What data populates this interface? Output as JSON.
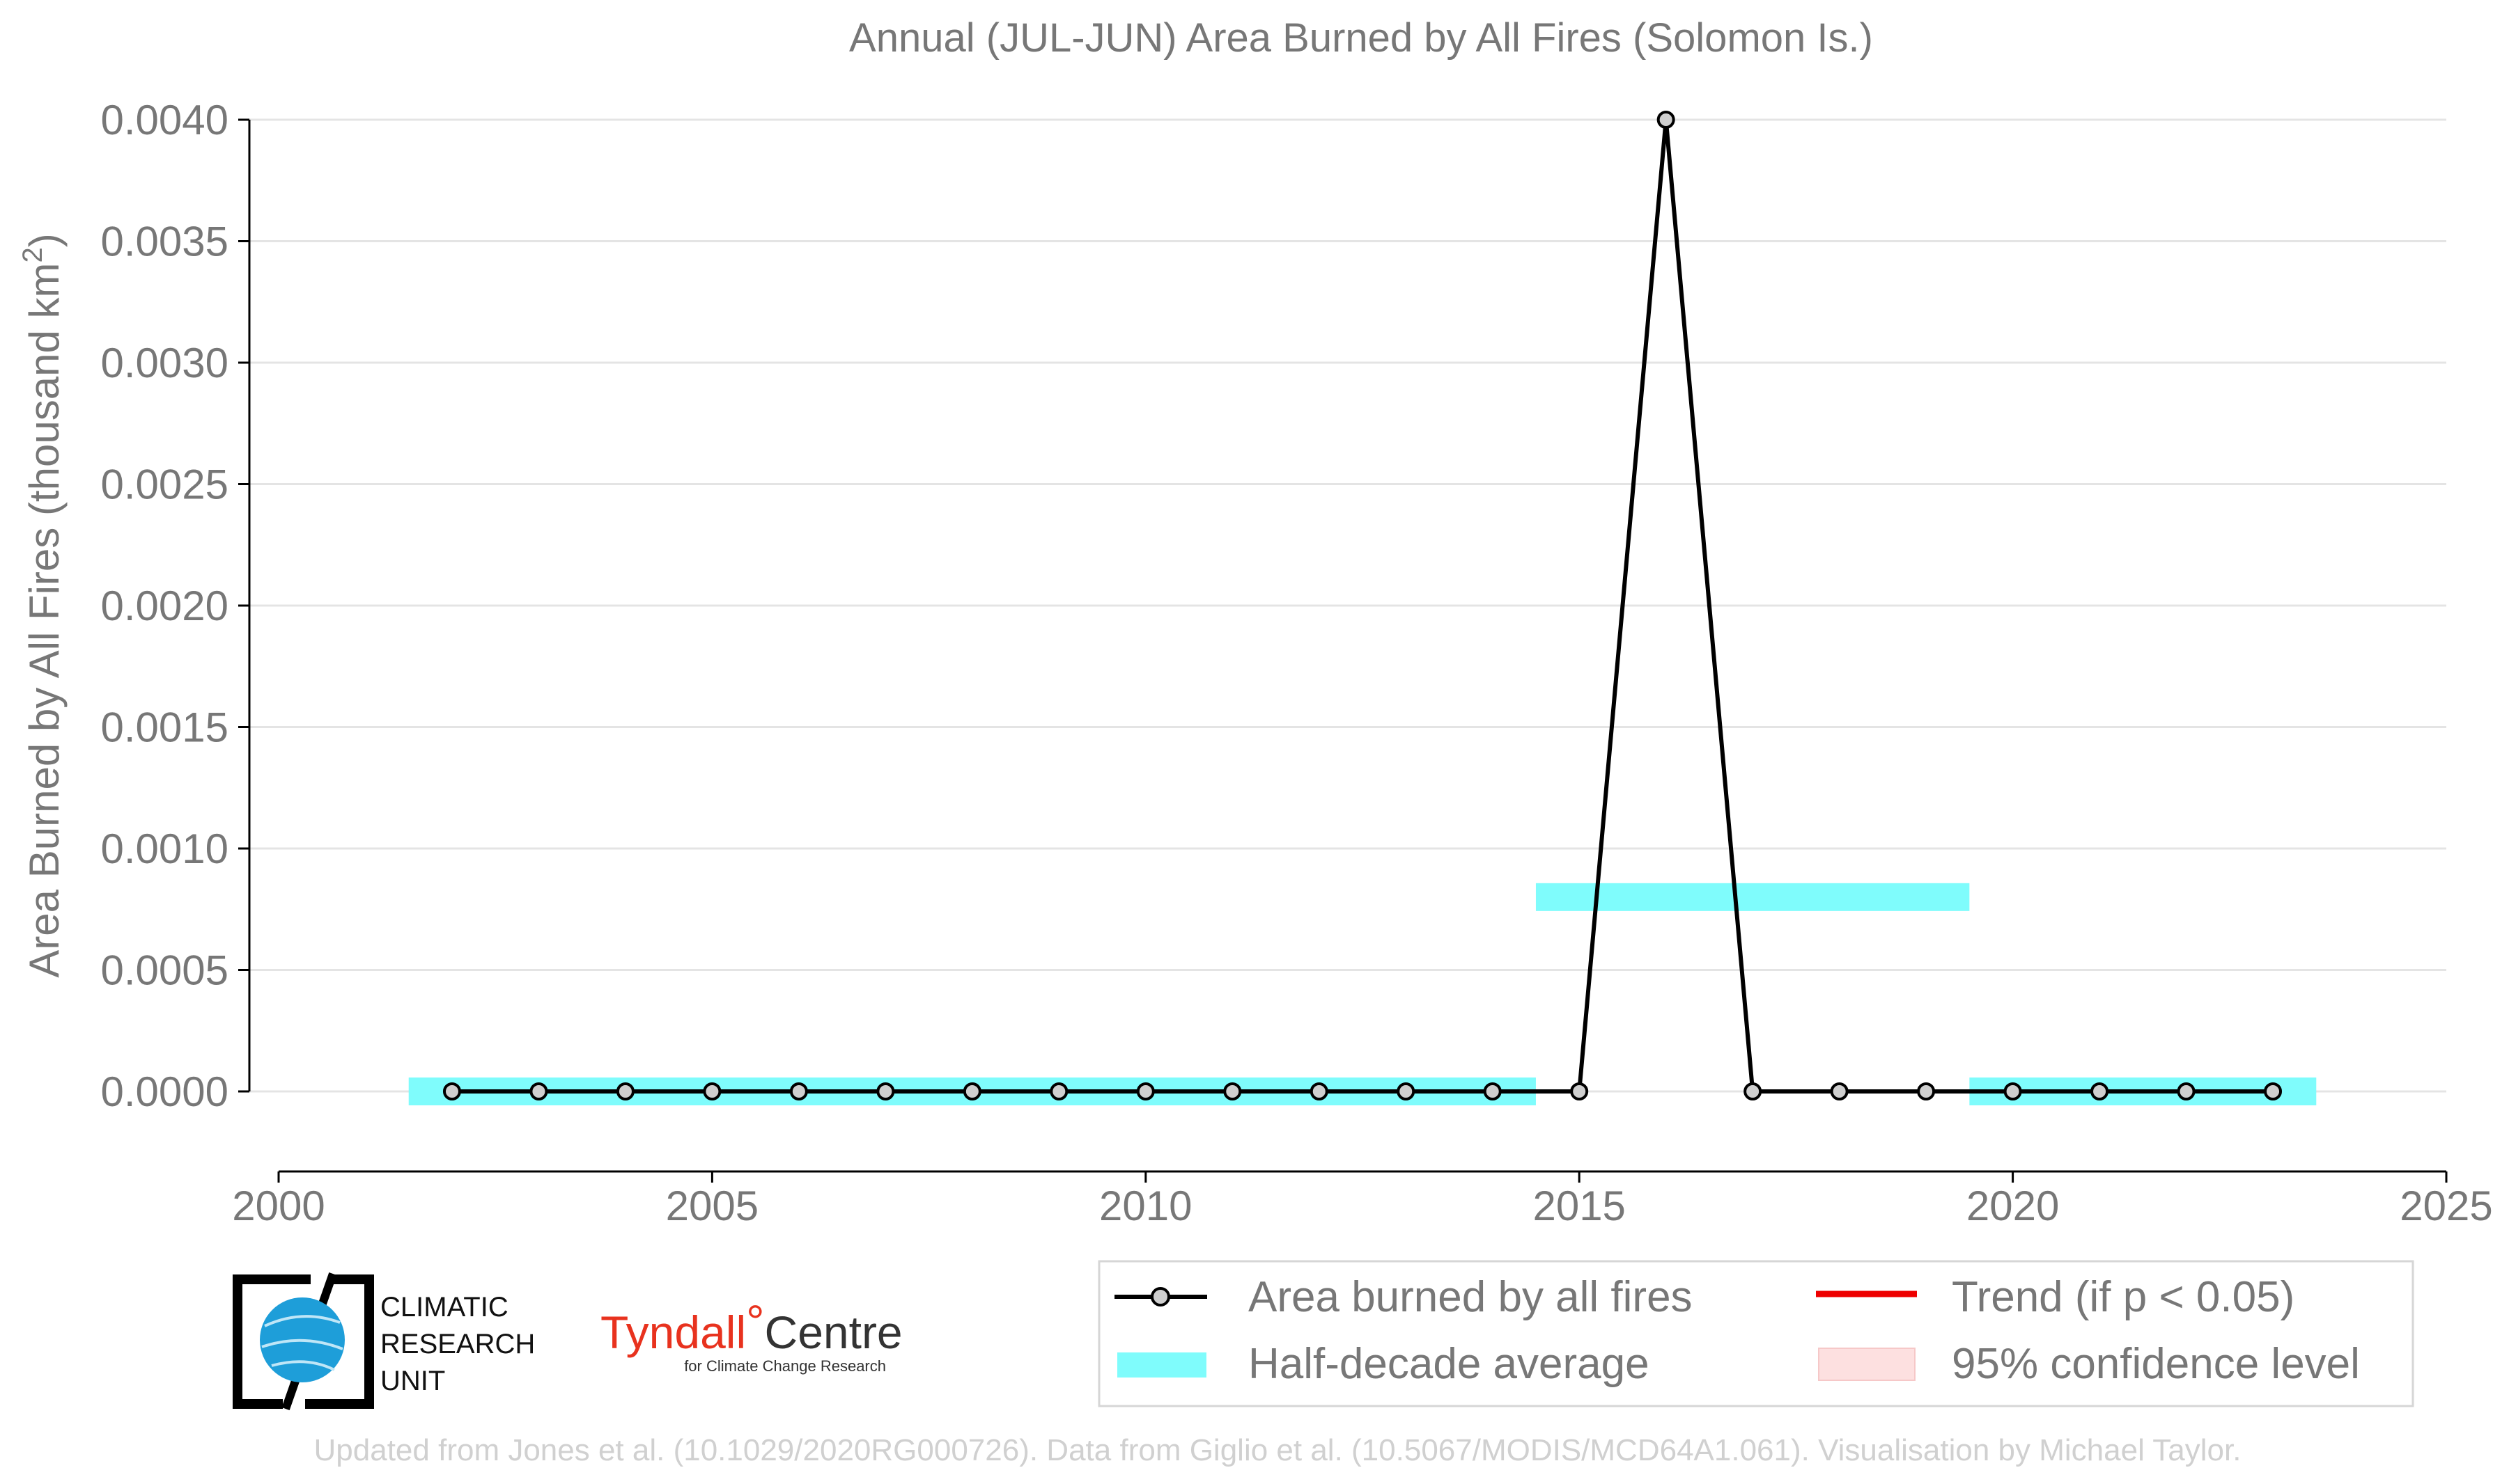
{
  "chart_data": {
    "type": "line",
    "title": "Annual (JUL-JUN) Area Burned by All Fires (Solomon Is.)",
    "ylabel_prefix": "Area Burned by All Fires (thousand km",
    "ylabel_sup": "2",
    "ylabel_suffix": ")",
    "xlabel": "",
    "xlim": [
      2000,
      2025
    ],
    "ylim": [
      0,
      0.004
    ],
    "x_ticks": [
      2000,
      2005,
      2010,
      2015,
      2020,
      2025
    ],
    "x_tick_labels": [
      "2000",
      "2005",
      "2010",
      "2015",
      "2020",
      "2025"
    ],
    "y_ticks": [
      0,
      0.0005,
      0.001,
      0.0015,
      0.002,
      0.0025,
      0.003,
      0.0035,
      0.004
    ],
    "y_tick_labels": [
      "0.0000",
      "0.0005",
      "0.0010",
      "0.0015",
      "0.0020",
      "0.0025",
      "0.0030",
      "0.0035",
      "0.0040"
    ],
    "series": [
      {
        "name": "Area burned by all fires",
        "color": "#000000",
        "x": [
          2002,
          2003,
          2004,
          2005,
          2006,
          2007,
          2008,
          2009,
          2010,
          2011,
          2012,
          2013,
          2014,
          2015,
          2016,
          2017,
          2018,
          2019,
          2020,
          2021,
          2022,
          2023
        ],
        "values": [
          0,
          0,
          0,
          0,
          0,
          0,
          0,
          0,
          0,
          0,
          0,
          0,
          0,
          0,
          0.004,
          0,
          0,
          0,
          0,
          0,
          0,
          0
        ]
      }
    ],
    "half_decade_average": {
      "name": "Half-decade average",
      "color": "#7ffcfc",
      "segments": [
        {
          "x_start": 2001.5,
          "x_end": 2014.5,
          "value": 0
        },
        {
          "x_start": 2014.5,
          "x_end": 2019.5,
          "value": 0.0008
        },
        {
          "x_start": 2019.5,
          "x_end": 2023.5,
          "value": 0
        }
      ]
    },
    "legend": [
      {
        "key": "series",
        "label": "Area burned by all fires"
      },
      {
        "key": "half",
        "label": "Half-decade average"
      },
      {
        "key": "trend",
        "label": "Trend (if p < 0.05)",
        "color": "#ee0000"
      },
      {
        "key": "ci",
        "label": "95% confidence level",
        "color": "#fde0e0"
      }
    ],
    "legend_position": "bottom-right"
  },
  "logos": {
    "cru_lines": [
      "CLIMATIC",
      "RESEARCH",
      "UNIT"
    ],
    "tyndall_main": "Tyndall",
    "tyndall_degree": "°",
    "tyndall_centre": "Centre",
    "tyndall_sub": "for Climate Change Research"
  },
  "footer": "Updated from Jones et al. (10.1029/2020RG000726). Data from Giglio et al. (10.5067/MODIS/MCD64A1.061). Visualisation by Michael Taylor."
}
